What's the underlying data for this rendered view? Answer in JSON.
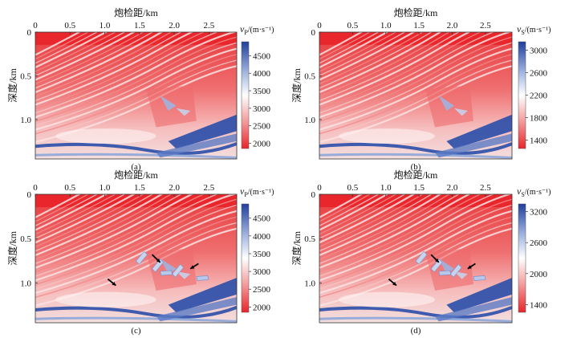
{
  "figure": {
    "panels": [
      {
        "id": "a",
        "caption": "(a)",
        "xlabel": "炮检距/km",
        "ylabel": "深度/km",
        "quantity": "v",
        "subscript": "P",
        "unit": "/(m·s⁻¹)"
      },
      {
        "id": "b",
        "caption": "(b)",
        "xlabel": "炮检距/km",
        "ylabel": "深度/km",
        "quantity": "v",
        "subscript": "S",
        "unit": "/(m·s⁻¹)"
      },
      {
        "id": "c",
        "caption": "(c)",
        "xlabel": "炮检距/km",
        "ylabel": "深度/km",
        "quantity": "v",
        "subscript": "P",
        "unit": "/(m·s⁻¹)"
      },
      {
        "id": "d",
        "caption": "(d)",
        "xlabel": "炮检距/km",
        "ylabel": "深度/km",
        "quantity": "v",
        "subscript": "S",
        "unit": "/(m·s⁻¹)"
      }
    ]
  },
  "chart_data": [
    {
      "type": "heatmap",
      "panel": "a",
      "x_ticks": [
        0,
        0.5,
        1.0,
        1.5,
        2.0,
        2.5
      ],
      "x_tick_labels": [
        "0",
        "0.5",
        "1.0",
        "1.5",
        "2.0",
        "2.5"
      ],
      "xlim": [
        0,
        2.9
      ],
      "y_ticks": [
        0,
        0.5,
        1.0
      ],
      "y_tick_labels": [
        "0",
        "0.5",
        "1.0"
      ],
      "ylim": [
        0,
        1.45
      ],
      "colorbar": {
        "ticks": [
          2000,
          2500,
          3000,
          3500,
          4000,
          4500
        ],
        "range": [
          1850,
          4900
        ],
        "colors": [
          "#e8262b",
          "#f4a6a6",
          "#ffffff",
          "#9fb3df",
          "#1f3f9c"
        ]
      }
    },
    {
      "type": "heatmap",
      "panel": "b",
      "x_ticks": [
        0,
        0.5,
        1.0,
        1.5,
        2.0,
        2.5
      ],
      "x_tick_labels": [
        "0",
        "0.5",
        "1.0",
        "1.5",
        "2.0",
        "2.5"
      ],
      "xlim": [
        0,
        2.9
      ],
      "y_ticks": [
        0,
        0.5,
        1.0
      ],
      "y_tick_labels": [
        "0",
        "0.5",
        "1.0"
      ],
      "ylim": [
        0,
        1.45
      ],
      "colorbar": {
        "ticks": [
          1400,
          1800,
          2200,
          2600,
          3000
        ],
        "range": [
          1250,
          3150
        ],
        "colors": [
          "#e8262b",
          "#f4a6a6",
          "#ffffff",
          "#9fb3df",
          "#1f3f9c"
        ]
      }
    },
    {
      "type": "heatmap",
      "panel": "c",
      "x_ticks": [
        0,
        0.5,
        1.0,
        1.5,
        2.0,
        2.5
      ],
      "x_tick_labels": [
        "0",
        "0.5",
        "1.0",
        "1.5",
        "2.0",
        "2.5"
      ],
      "xlim": [
        0,
        2.9
      ],
      "y_ticks": [
        0,
        0.5,
        1.0
      ],
      "y_tick_labels": [
        "0",
        "0.5",
        "1.0"
      ],
      "ylim": [
        0,
        1.45
      ],
      "colorbar": {
        "ticks": [
          2000,
          2500,
          3000,
          3500,
          4000,
          4500
        ],
        "range": [
          1850,
          4900
        ],
        "colors": [
          "#e8262b",
          "#f4a6a6",
          "#ffffff",
          "#9fb3df",
          "#1f3f9c"
        ]
      }
    },
    {
      "type": "heatmap",
      "panel": "d",
      "x_ticks": [
        0,
        0.5,
        1.0,
        1.5,
        2.0,
        2.5
      ],
      "x_tick_labels": [
        "0",
        "0.5",
        "1.0",
        "1.5",
        "2.0",
        "2.5"
      ],
      "xlim": [
        0,
        2.9
      ],
      "y_ticks": [
        0,
        0.5,
        1.0
      ],
      "y_tick_labels": [
        "0",
        "0.5",
        "1.0"
      ],
      "ylim": [
        0,
        1.45
      ],
      "colorbar": {
        "ticks": [
          1400,
          2000,
          2600,
          3200
        ],
        "range": [
          1250,
          3350
        ],
        "colors": [
          "#e8262b",
          "#f4a6a6",
          "#ffffff",
          "#9fb3df",
          "#1f3f9c"
        ]
      }
    }
  ]
}
